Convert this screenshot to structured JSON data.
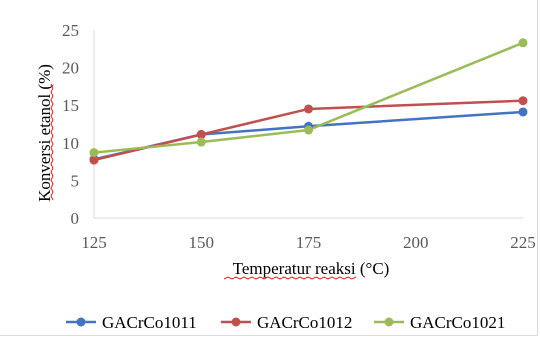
{
  "chart_data": {
    "type": "line",
    "title": "",
    "xlabel": "Temperatur reaksi (°C)",
    "ylabel": "Konversi etanol (%)",
    "x": [
      125,
      150,
      175,
      225
    ],
    "x_ticks": [
      "125",
      "150",
      "175",
      "200",
      "225"
    ],
    "y_ticks": [
      "0",
      "5",
      "10",
      "15",
      "20",
      "25"
    ],
    "xlim": [
      125,
      225
    ],
    "ylim": [
      0,
      25
    ],
    "grid": false,
    "legend_position": "bottom",
    "series": [
      {
        "name": "GACrCo1011",
        "color": "#4472c4",
        "values": [
          7.8,
          11.1,
          12.2,
          14.1
        ]
      },
      {
        "name": "GACrCo1012",
        "color": "#c0504d",
        "values": [
          7.7,
          11.1,
          14.5,
          15.6
        ]
      },
      {
        "name": "GACrCo1021",
        "color": "#9bbb59",
        "values": [
          8.7,
          10.1,
          11.7,
          23.3
        ]
      }
    ]
  }
}
